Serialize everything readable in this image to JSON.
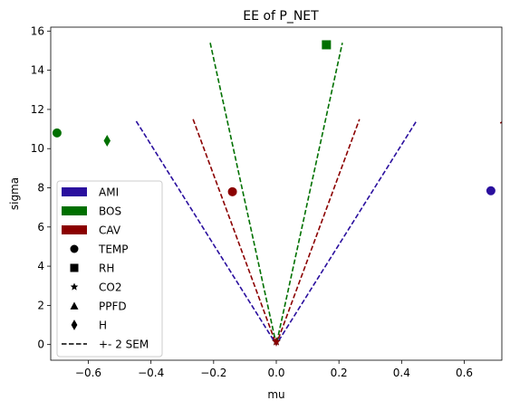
{
  "chart_data": {
    "type": "scatter",
    "title": "EE of P_NET",
    "xlabel": "mu",
    "ylabel": "sigma",
    "xlim": [
      -0.72,
      0.72
    ],
    "ylim": [
      -0.8,
      16.2
    ],
    "xticks": [
      -0.6,
      -0.4,
      -0.2,
      0.0,
      0.2,
      0.4,
      0.6
    ],
    "xtick_labels": [
      "−0.6",
      "−0.4",
      "−0.2",
      "0.0",
      "0.2",
      "0.4",
      "0.6"
    ],
    "yticks": [
      0,
      2,
      4,
      6,
      8,
      10,
      12,
      14,
      16
    ],
    "ytick_labels": [
      "0",
      "2",
      "4",
      "6",
      "8",
      "10",
      "12",
      "14",
      "16"
    ],
    "grid": false,
    "legend_position": "lower-left",
    "groups": [
      {
        "name": "AMI",
        "color": "#2a0f9e"
      },
      {
        "name": "BOS",
        "color": "#007000"
      },
      {
        "name": "CAV",
        "color": "#8b0000"
      }
    ],
    "markers": [
      {
        "name": "TEMP",
        "shape": "circle"
      },
      {
        "name": "RH",
        "shape": "square"
      },
      {
        "name": "CO2",
        "shape": "star"
      },
      {
        "name": "PPFD",
        "shape": "triangle"
      },
      {
        "name": "H",
        "shape": "diamond"
      }
    ],
    "sem_label": "+- 2 SEM",
    "sem_lines": [
      {
        "group": "AMI",
        "slope": 25.5,
        "y_max": 11.4
      },
      {
        "group": "BOS",
        "slope": 73.0,
        "y_max": 15.4
      },
      {
        "group": "CAV",
        "slope": 43.3,
        "y_max": 11.5
      }
    ],
    "sem_partial_line": {
      "group": "CAV",
      "x": [
        0.715,
        0.72
      ],
      "y": [
        11.3,
        11.35
      ]
    },
    "points": [
      {
        "group": "AMI",
        "marker": "circle",
        "x": 0.685,
        "y": 7.85
      },
      {
        "group": "AMI",
        "marker": "star",
        "x": 0.0,
        "y": 0.15
      },
      {
        "group": "BOS",
        "marker": "circle",
        "x": -0.7,
        "y": 10.8
      },
      {
        "group": "BOS",
        "marker": "diamond",
        "x": -0.54,
        "y": 10.4
      },
      {
        "group": "BOS",
        "marker": "square",
        "x": 0.16,
        "y": 15.3
      },
      {
        "group": "BOS",
        "marker": "star",
        "x": 0.0,
        "y": 0.15
      },
      {
        "group": "CAV",
        "marker": "circle",
        "x": -0.14,
        "y": 7.8
      },
      {
        "group": "CAV",
        "marker": "star",
        "x": 0.0,
        "y": 0.15
      }
    ]
  }
}
